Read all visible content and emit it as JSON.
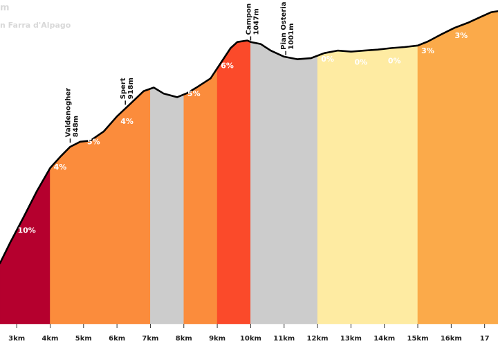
{
  "header": {
    "title": "m",
    "subtitle": "n Farra d'Alpago"
  },
  "chart_data": {
    "type": "area",
    "title": "m",
    "subtitle": "n Farra d'Alpago",
    "xlabel": "",
    "ylabel": "",
    "x_unit": "km",
    "xlim": [
      2.5,
      17.4
    ],
    "ylim": [
      450,
      1090
    ],
    "x_ticks": [
      {
        "x": 3,
        "label": "3km"
      },
      {
        "x": 4,
        "label": "4km"
      },
      {
        "x": 5,
        "label": "5km"
      },
      {
        "x": 6,
        "label": "6km"
      },
      {
        "x": 7,
        "label": "7km"
      },
      {
        "x": 8,
        "label": "8km"
      },
      {
        "x": 9,
        "label": "9km"
      },
      {
        "x": 10,
        "label": "10km"
      },
      {
        "x": 11,
        "label": "11km"
      },
      {
        "x": 12,
        "label": "12km"
      },
      {
        "x": 13,
        "label": "13km"
      },
      {
        "x": 14,
        "label": "14km"
      },
      {
        "x": 15,
        "label": "15km"
      },
      {
        "x": 16,
        "label": "16km"
      },
      {
        "x": 17,
        "label": "17"
      }
    ],
    "segments": [
      {
        "from": 2.5,
        "to": 4,
        "gradient": "10%",
        "color": "#b5002e",
        "label_x": 3.3,
        "label_y": 630
      },
      {
        "from": 4,
        "to": 7,
        "gradient": "5%",
        "color": "#fb8c3c",
        "label_x": 5.3,
        "label_y": 805
      },
      {
        "from": 7,
        "to": 8,
        "gradient": "",
        "color": "#cccccc",
        "label_x": 7.5,
        "label_y": 0
      },
      {
        "from": 8,
        "to": 9,
        "gradient": "5%",
        "color": "#fb8c3c",
        "label_x": 8.3,
        "label_y": 900
      },
      {
        "from": 9,
        "to": 10,
        "gradient": "6%",
        "color": "#fb4a2a",
        "label_x": 9.3,
        "label_y": 955
      },
      {
        "from": 10,
        "to": 12,
        "gradient": "",
        "color": "#cccccc",
        "label_x": 11,
        "label_y": 0
      },
      {
        "from": 12,
        "to": 15,
        "gradient": "0%",
        "color": "#feeba2",
        "label_x": 12.3,
        "label_y": 968
      },
      {
        "from": 15,
        "to": 17.4,
        "gradient": "3%",
        "color": "#fbaa4a",
        "label_x": 15.3,
        "label_y": 985
      }
    ],
    "extra_labels": [
      {
        "x": 4.3,
        "y": 755,
        "text": "4%"
      },
      {
        "x": 6.3,
        "y": 845,
        "text": "4%"
      },
      {
        "x": 13.3,
        "y": 962,
        "text": "0%"
      },
      {
        "x": 14.3,
        "y": 965,
        "text": "0%"
      },
      {
        "x": 16.3,
        "y": 1015,
        "text": "3%"
      }
    ],
    "profile": [
      [
        2.5,
        570
      ],
      [
        2.8,
        610
      ],
      [
        3.2,
        660
      ],
      [
        3.6,
        712
      ],
      [
        4.0,
        758
      ],
      [
        4.3,
        780
      ],
      [
        4.6,
        800
      ],
      [
        4.9,
        810
      ],
      [
        5.2,
        812
      ],
      [
        5.6,
        830
      ],
      [
        6.0,
        860
      ],
      [
        6.4,
        885
      ],
      [
        6.8,
        910
      ],
      [
        7.1,
        917
      ],
      [
        7.4,
        905
      ],
      [
        7.8,
        898
      ],
      [
        8.1,
        906
      ],
      [
        8.4,
        918
      ],
      [
        8.8,
        935
      ],
      [
        9.1,
        965
      ],
      [
        9.4,
        995
      ],
      [
        9.6,
        1007
      ],
      [
        9.9,
        1010
      ],
      [
        10.0,
        1007
      ],
      [
        10.3,
        1003
      ],
      [
        10.6,
        990
      ],
      [
        11.0,
        978
      ],
      [
        11.4,
        973
      ],
      [
        11.8,
        975
      ],
      [
        12.2,
        985
      ],
      [
        12.6,
        990
      ],
      [
        13.0,
        988
      ],
      [
        13.4,
        990
      ],
      [
        13.8,
        992
      ],
      [
        14.2,
        995
      ],
      [
        14.6,
        997
      ],
      [
        15.0,
        1000
      ],
      [
        15.3,
        1008
      ],
      [
        15.7,
        1022
      ],
      [
        16.1,
        1035
      ],
      [
        16.5,
        1045
      ],
      [
        16.9,
        1057
      ],
      [
        17.2,
        1066
      ],
      [
        17.4,
        1068
      ]
    ],
    "landmarks": [
      {
        "x": 4.6,
        "y": 808,
        "name": "Valdenogher",
        "elevation": "848m"
      },
      {
        "x": 6.25,
        "y": 883,
        "name": "Spert",
        "elevation": "918m"
      },
      {
        "x": 10.0,
        "y": 1010,
        "name": "Campon",
        "elevation": "1047m"
      },
      {
        "x": 11.05,
        "y": 981,
        "name": "Pian Osteria",
        "elevation": "1001m"
      }
    ],
    "grid": false,
    "legend": "none",
    "profile_line_color": "#000000"
  }
}
